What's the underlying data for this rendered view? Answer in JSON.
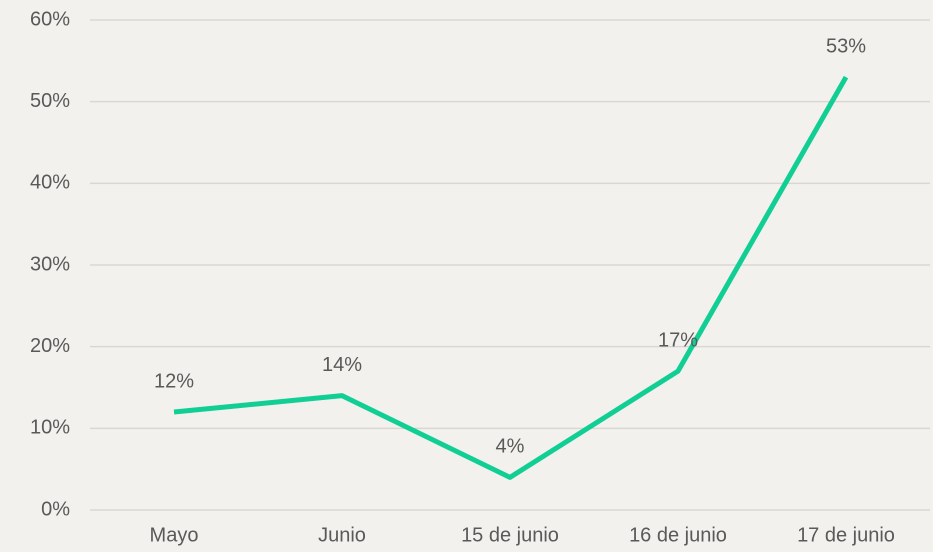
{
  "chart_data": {
    "type": "line",
    "categories": [
      "Mayo",
      "Junio",
      "15 de junio",
      "16 de junio",
      "17 de junio"
    ],
    "values": [
      12,
      14,
      4,
      17,
      53
    ],
    "value_labels": [
      "12%",
      "14%",
      "4%",
      "17%",
      "53%"
    ],
    "color": "#11cf94",
    "ylim": [
      0,
      60
    ],
    "yticks": [
      {
        "value": 0,
        "label": "0%"
      },
      {
        "value": 10,
        "label": "10%"
      },
      {
        "value": 20,
        "label": "20%"
      },
      {
        "value": 30,
        "label": "30%"
      },
      {
        "value": 40,
        "label": "40%"
      },
      {
        "value": 50,
        "label": "50%"
      },
      {
        "value": 60,
        "label": "60%"
      }
    ],
    "grid": true
  }
}
